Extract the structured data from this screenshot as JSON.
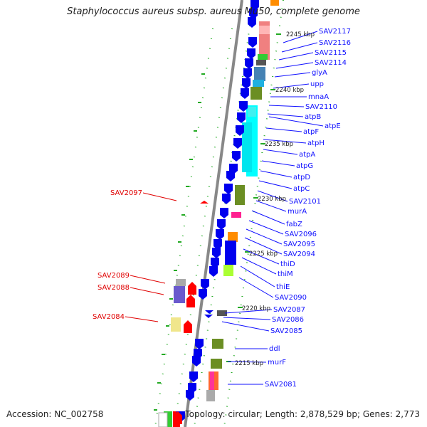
{
  "title": "Staphylococcus aureus subsp. aureus Mu50, complete genome",
  "footer": {
    "accession": "Accession: NC_002758",
    "info": "Topology: circular; Length: 2,878,529 bp; Genes: 2,773"
  },
  "scale_labels": [
    "2245 kbp",
    "2240 kbp",
    "2235 kbp",
    "2230 kbp",
    "2225 kbp",
    "2220 kbp",
    "2215 kbp"
  ],
  "right_labels": [
    "SAV2117",
    "SAV2116",
    "SAV2115",
    "SAV2114",
    "glyA",
    "upp",
    "mnaA",
    "SAV2110",
    "atpB",
    "atpE",
    "atpF",
    "atpH",
    "atpA",
    "atpG",
    "atpD",
    "atpC",
    "SAV2101",
    "murA",
    "fabZ",
    "SAV2096",
    "SAV2095",
    "SAV2094",
    "thiD",
    "thiM",
    "thiE",
    "SAV2090",
    "SAV2087",
    "SAV2086",
    "SAV2085",
    "ddl",
    "murF",
    "SAV2081"
  ],
  "left_labels": [
    "SAV2097",
    "SAV2089",
    "SAV2088",
    "SAV2084"
  ],
  "colors": {
    "forward_gene": "#0000ee",
    "reverse_gene": "#ff0000",
    "right_label": "#1010ff",
    "left_label": "#e00000",
    "backbone": "#888888",
    "tick": "#22aa22"
  }
}
